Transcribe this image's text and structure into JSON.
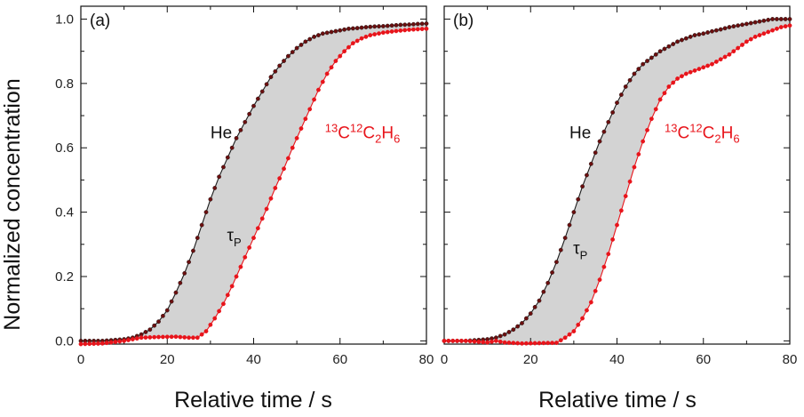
{
  "y_axis_title": "Normalized concentration",
  "x_axis_title": "Relative time / s",
  "colors": {
    "he": "#1a1a1a",
    "he_marker": "#6b0f0f",
    "tracer": "#e8141b",
    "fill": "#d3d3d3"
  },
  "chart_data": [
    {
      "type": "line",
      "panel_label": "(a)",
      "xlim": [
        0,
        80
      ],
      "ylim": [
        -0.01,
        1.04
      ],
      "x_ticks": [
        0,
        20,
        40,
        60,
        80
      ],
      "y_ticks": [
        0.0,
        0.2,
        0.4,
        0.6,
        0.8,
        1.0
      ],
      "x_tick_labels": [
        "0",
        "20",
        "40",
        "60",
        "80"
      ],
      "y_tick_labels": [
        "0.0",
        "0.2",
        "0.4",
        "0.6",
        "0.8",
        "1.0"
      ],
      "shaded_between_series": true,
      "annotations": {
        "he": {
          "text": "He",
          "x": 35,
          "y": 0.63
        },
        "tracer": {
          "parts": [
            "13",
            "C",
            "12",
            "C",
            "2",
            "H",
            "6"
          ],
          "x": 56.5,
          "y": 0.63
        },
        "tau": {
          "symbol": "τ",
          "sub": "P",
          "x": 35.5,
          "y": 0.31
        }
      },
      "series": [
        {
          "name": "He",
          "x": [
            0,
            5,
            10,
            12,
            14,
            16,
            18,
            20,
            22,
            24,
            26,
            28,
            30,
            32,
            34,
            36,
            38,
            40,
            42,
            44,
            46,
            48,
            50,
            52,
            54,
            56,
            58,
            60,
            62,
            64,
            66,
            68,
            70,
            72,
            74,
            76,
            78,
            80
          ],
          "y": [
            0.0,
            0.0,
            0.005,
            0.01,
            0.02,
            0.035,
            0.06,
            0.095,
            0.15,
            0.21,
            0.28,
            0.36,
            0.44,
            0.51,
            0.57,
            0.63,
            0.68,
            0.73,
            0.775,
            0.82,
            0.855,
            0.885,
            0.91,
            0.93,
            0.945,
            0.955,
            0.96,
            0.965,
            0.97,
            0.972,
            0.975,
            0.977,
            0.978,
            0.98,
            0.982,
            0.983,
            0.985,
            0.986
          ]
        },
        {
          "name": "13C12C2H6",
          "x": [
            0,
            5,
            10,
            14,
            18,
            22,
            25,
            27,
            29,
            31,
            33,
            35,
            37,
            39,
            41,
            43,
            45,
            47,
            49,
            51,
            53,
            55,
            57,
            59,
            61,
            63,
            65,
            67,
            70,
            73,
            76,
            80
          ],
          "y": [
            -0.01,
            -0.008,
            0.0,
            0.01,
            0.012,
            0.013,
            0.01,
            0.01,
            0.03,
            0.07,
            0.115,
            0.17,
            0.23,
            0.29,
            0.35,
            0.41,
            0.475,
            0.535,
            0.6,
            0.66,
            0.72,
            0.78,
            0.83,
            0.87,
            0.9,
            0.925,
            0.94,
            0.95,
            0.958,
            0.963,
            0.967,
            0.97
          ]
        }
      ]
    },
    {
      "type": "line",
      "panel_label": "(b)",
      "xlim": [
        0,
        80
      ],
      "ylim": [
        -0.01,
        1.04
      ],
      "x_ticks": [
        0,
        20,
        40,
        60,
        80
      ],
      "y_ticks": [
        0.0,
        0.2,
        0.4,
        0.6,
        0.8,
        1.0
      ],
      "x_tick_labels": [
        "0",
        "20",
        "40",
        "60",
        "80"
      ],
      "y_tick_labels": [
        "",
        "",
        "",
        "",
        "",
        ""
      ],
      "shaded_between_series": true,
      "annotations": {
        "he": {
          "text": "He",
          "x": 34,
          "y": 0.63
        },
        "tracer": {
          "parts": [
            "13",
            "C",
            "12",
            "C",
            "2",
            "H",
            "6"
          ],
          "x": 51,
          "y": 0.63
        },
        "tau": {
          "symbol": "τ",
          "sub": "P",
          "x": 31.5,
          "y": 0.27
        }
      },
      "series": [
        {
          "name": "He",
          "x": [
            0,
            5,
            10,
            12,
            14,
            16,
            18,
            20,
            22,
            24,
            26,
            28,
            30,
            32,
            34,
            36,
            38,
            40,
            42,
            44,
            46,
            48,
            50,
            52,
            54,
            56,
            58,
            60,
            62,
            64,
            66,
            68,
            70,
            72,
            74,
            76,
            78,
            80
          ],
          "y": [
            0.0,
            0.0,
            0.005,
            0.01,
            0.02,
            0.035,
            0.055,
            0.085,
            0.125,
            0.18,
            0.245,
            0.32,
            0.4,
            0.48,
            0.55,
            0.62,
            0.68,
            0.74,
            0.79,
            0.83,
            0.86,
            0.88,
            0.9,
            0.915,
            0.93,
            0.94,
            0.95,
            0.955,
            0.962,
            0.968,
            0.975,
            0.98,
            0.985,
            0.99,
            0.995,
            1.0,
            1.0,
            1.0
          ]
        },
        {
          "name": "13C12C2H6",
          "x": [
            0,
            5,
            10,
            12,
            14,
            18,
            22,
            26,
            28,
            30,
            32,
            34,
            36,
            38,
            40,
            42,
            44,
            46,
            48,
            50,
            52,
            54,
            56,
            58,
            60,
            62,
            64,
            66,
            68,
            70,
            72,
            74,
            76,
            78,
            80
          ],
          "y": [
            0.0,
            0.0,
            -0.005,
            0.0,
            -0.005,
            -0.008,
            -0.007,
            -0.006,
            0.01,
            0.03,
            0.07,
            0.12,
            0.19,
            0.27,
            0.36,
            0.45,
            0.54,
            0.62,
            0.69,
            0.75,
            0.79,
            0.815,
            0.83,
            0.84,
            0.85,
            0.86,
            0.875,
            0.89,
            0.91,
            0.93,
            0.945,
            0.955,
            0.965,
            0.975,
            0.98
          ]
        }
      ]
    }
  ]
}
